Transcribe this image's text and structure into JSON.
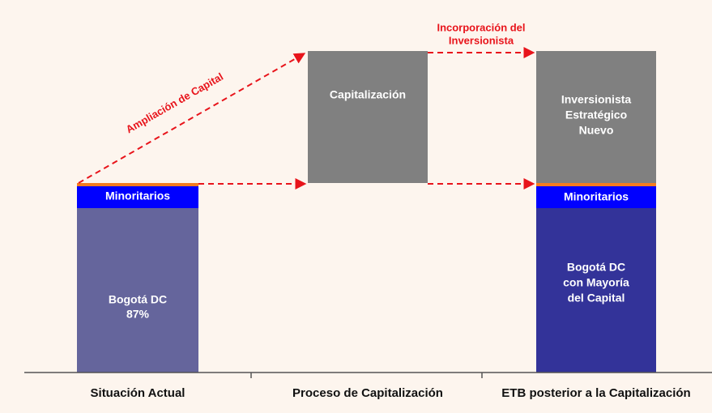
{
  "diagram": {
    "arrows": {
      "ampliacion": "Ampliación de Capital",
      "incorporacion": [
        "Incorporación del",
        "Inversionista"
      ]
    },
    "columns": [
      {
        "label": "Situación Actual",
        "blocks": {
          "minoritarios": "Minoritarios",
          "bogota": [
            "Bogotá DC",
            "87%"
          ]
        }
      },
      {
        "label": "Proceso de Capitalización",
        "blocks": {
          "capitalizacion": "Capitalización"
        }
      },
      {
        "label": "ETB posterior a la Capitalización",
        "blocks": {
          "inversionista": [
            "Inversionista",
            "Estratégico",
            "Nuevo"
          ],
          "minoritarios": "Minoritarios",
          "bogota": [
            "Bogotá DC",
            "con Mayoría",
            "del Capital"
          ]
        }
      }
    ]
  }
}
